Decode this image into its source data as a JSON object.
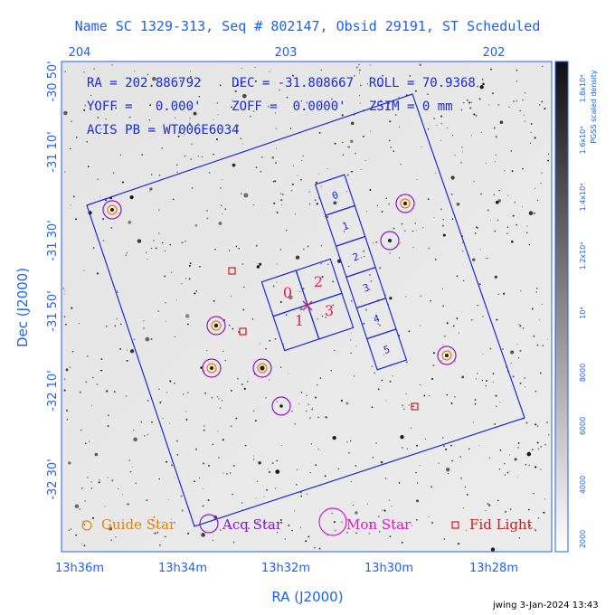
{
  "header": {
    "title": "Name SC 1329-313, Seq # 802147, Obsid 29191, ST Scheduled"
  },
  "info": {
    "line1": "RA = 202.886792    DEC = -31.808667  ROLL = 70.9368",
    "line2": "YOFF =   0.000'    ZOFF =  0.0000'   ZSIM = 0 mm",
    "line3": "ACIS PB = WT006E6034"
  },
  "top_axis": {
    "ticks": [
      "204",
      "203",
      "202"
    ]
  },
  "bottom_axis": {
    "title": "RA (J2000)",
    "ticks": [
      "13h36m",
      "13h34m",
      "13h32m",
      "13h30m",
      "13h28m"
    ]
  },
  "left_axis": {
    "title": "Dec (J2000)",
    "ticks": [
      "-30 50'",
      "-31 10'",
      "-31 30'",
      "-31 50'",
      "-32 10'",
      "-32 30'"
    ]
  },
  "colorbar": {
    "title": "PGSS scaled density",
    "ticks": [
      "2000",
      "4000",
      "6000",
      "8000",
      "10⁴",
      "1.2x10⁴",
      "1.4x10⁴",
      "1.6x10⁴",
      "1.8x10⁴"
    ]
  },
  "ccds": {
    "imaging": [
      "0",
      "2",
      "1",
      "3"
    ],
    "spectroscopy": [
      "0",
      "1",
      "2",
      "3",
      "4",
      "5"
    ]
  },
  "legend": {
    "guide": "Guide Star",
    "acq": "Acq Star",
    "mon": "Mon Star",
    "fid": "Fid Light"
  },
  "footer": {
    "text": "jwing  3-Jan-2024 13:43"
  },
  "colors": {
    "axis": "#1a5fff",
    "ccd": "#1a2bd8",
    "ccd_label_imaging": "#d8205a",
    "guide": "#e8820a",
    "acq": "#8a18c8",
    "fid": "#d81818",
    "mon": "#e018c8"
  },
  "icons": {
    "guide": "small-orange-circle-icon",
    "acq": "purple-circle-icon",
    "mon": "magenta-circle-icon",
    "fid": "red-square-icon",
    "aimpoint": "aimpoint-x-icon"
  }
}
